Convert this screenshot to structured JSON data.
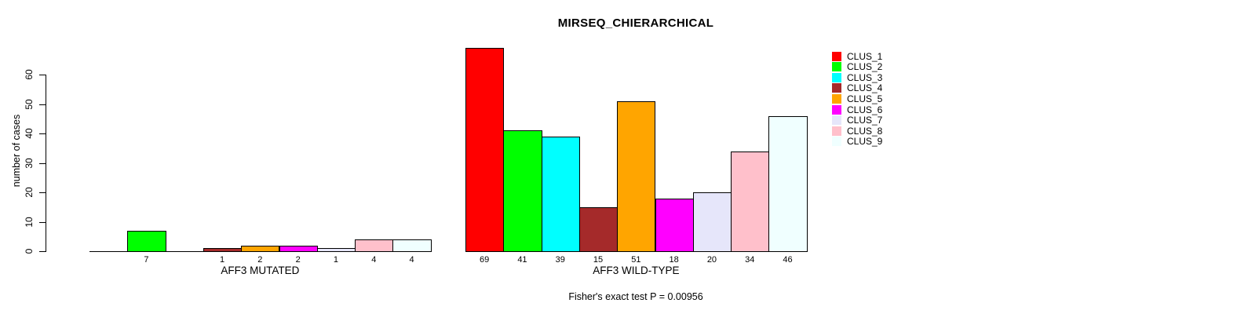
{
  "chart_data": {
    "type": "bar",
    "title": "MIRSEQ_CHIERARCHICAL",
    "ylabel": "number of cases",
    "yticks": [
      0,
      10,
      20,
      30,
      40,
      50,
      60
    ],
    "ylim": [
      0,
      69
    ],
    "grid": false,
    "legend_position": "right",
    "clusters": [
      {
        "name": "CLUS_1",
        "color": "#FF0000"
      },
      {
        "name": "CLUS_2",
        "color": "#00FF00"
      },
      {
        "name": "CLUS_3",
        "color": "#00FFFF"
      },
      {
        "name": "CLUS_4",
        "color": "#A52A2A"
      },
      {
        "name": "CLUS_5",
        "color": "#FFA500"
      },
      {
        "name": "CLUS_6",
        "color": "#FF00FF"
      },
      {
        "name": "CLUS_7",
        "color": "#E6E6FA"
      },
      {
        "name": "CLUS_8",
        "color": "#FFC0CB"
      },
      {
        "name": "CLUS_9",
        "color": "#F0FFFF"
      }
    ],
    "groups": [
      {
        "label": "AFF3 MUTATED",
        "values": [
          0,
          7,
          0,
          1,
          2,
          2,
          1,
          4,
          4
        ]
      },
      {
        "label": "AFF3 WILD-TYPE",
        "values": [
          69,
          41,
          39,
          15,
          51,
          18,
          20,
          34,
          46
        ]
      }
    ],
    "zero_bars_unlabeled": true,
    "annotation": "Fisher's exact test P = 0.00956"
  }
}
